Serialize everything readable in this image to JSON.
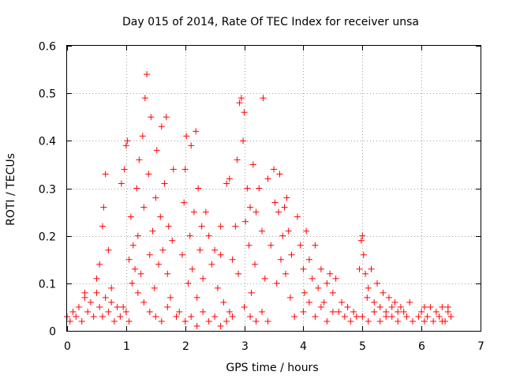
{
  "chart_data": {
    "type": "scatter",
    "title": "Day 015 of 2014, Rate Of TEC Index for receiver unsa",
    "xlabel": "GPS time / hours",
    "ylabel": "ROTI / TECUs",
    "xlim": [
      0,
      7
    ],
    "ylim": [
      0,
      0.6
    ],
    "grid": true,
    "x_ticks": [
      0,
      1,
      2,
      3,
      4,
      5,
      6,
      7
    ],
    "x_tick_labels": [
      "0",
      "1",
      "2",
      "3",
      "4",
      "5",
      "6",
      "7"
    ],
    "y_ticks": [
      0,
      0.1,
      0.2,
      0.3,
      0.4,
      0.5,
      0.6
    ],
    "y_tick_labels": [
      "0",
      "0.1",
      "0.2",
      "0.3",
      "0.4",
      "0.5",
      "0.6"
    ],
    "series": [
      {
        "name": "ROTI",
        "color": "#ff0000",
        "marker": "plus",
        "points": [
          [
            0.0,
            0.03
          ],
          [
            0.05,
            0.02
          ],
          [
            0.1,
            0.04
          ],
          [
            0.15,
            0.03
          ],
          [
            0.2,
            0.05
          ],
          [
            0.25,
            0.02
          ],
          [
            0.3,
            0.07
          ],
          [
            0.35,
            0.04
          ],
          [
            0.4,
            0.06
          ],
          [
            0.45,
            0.03
          ],
          [
            0.5,
            0.08
          ],
          [
            0.55,
            0.05
          ],
          [
            0.6,
            0.03
          ],
          [
            0.65,
            0.07
          ],
          [
            0.7,
            0.04
          ],
          [
            0.75,
            0.06
          ],
          [
            0.8,
            0.02
          ],
          [
            0.85,
            0.05
          ],
          [
            0.3,
            0.08
          ],
          [
            0.5,
            0.11
          ],
          [
            0.55,
            0.14
          ],
          [
            0.6,
            0.22
          ],
          [
            0.62,
            0.26
          ],
          [
            0.65,
            0.33
          ],
          [
            0.7,
            0.17
          ],
          [
            0.75,
            0.09
          ],
          [
            0.9,
            0.03
          ],
          [
            0.95,
            0.05
          ],
          [
            1.0,
            0.04
          ],
          [
            1.05,
            0.02
          ],
          [
            0.92,
            0.31
          ],
          [
            0.97,
            0.34
          ],
          [
            1.0,
            0.39
          ],
          [
            1.02,
            0.4
          ],
          [
            1.05,
            0.15
          ],
          [
            1.08,
            0.24
          ],
          [
            1.1,
            0.1
          ],
          [
            1.12,
            0.18
          ],
          [
            1.15,
            0.13
          ],
          [
            1.18,
            0.3
          ],
          [
            1.2,
            0.2
          ],
          [
            1.22,
            0.36
          ],
          [
            1.25,
            0.12
          ],
          [
            1.28,
            0.41
          ],
          [
            1.3,
            0.26
          ],
          [
            1.32,
            0.49
          ],
          [
            1.35,
            0.54
          ],
          [
            1.38,
            0.33
          ],
          [
            1.4,
            0.16
          ],
          [
            1.42,
            0.45
          ],
          [
            1.45,
            0.21
          ],
          [
            1.48,
            0.09
          ],
          [
            1.5,
            0.28
          ],
          [
            1.52,
            0.38
          ],
          [
            1.55,
            0.14
          ],
          [
            1.58,
            0.24
          ],
          [
            1.6,
            0.43
          ],
          [
            1.62,
            0.17
          ],
          [
            1.65,
            0.31
          ],
          [
            1.68,
            0.45
          ],
          [
            1.7,
            0.12
          ],
          [
            1.72,
            0.22
          ],
          [
            1.75,
            0.07
          ],
          [
            1.78,
            0.19
          ],
          [
            1.8,
            0.34
          ],
          [
            1.85,
            0.03
          ],
          [
            1.2,
            0.08
          ],
          [
            1.3,
            0.06
          ],
          [
            1.4,
            0.04
          ],
          [
            1.5,
            0.03
          ],
          [
            1.6,
            0.02
          ],
          [
            1.7,
            0.05
          ],
          [
            1.9,
            0.04
          ],
          [
            1.95,
            0.16
          ],
          [
            1.98,
            0.27
          ],
          [
            2.0,
            0.34
          ],
          [
            2.02,
            0.41
          ],
          [
            2.05,
            0.1
          ],
          [
            2.08,
            0.2
          ],
          [
            2.1,
            0.39
          ],
          [
            2.12,
            0.13
          ],
          [
            2.15,
            0.25
          ],
          [
            2.18,
            0.42
          ],
          [
            2.2,
            0.07
          ],
          [
            2.22,
            0.3
          ],
          [
            2.25,
            0.17
          ],
          [
            2.28,
            0.22
          ],
          [
            2.3,
            0.11
          ],
          [
            2.35,
            0.25
          ],
          [
            2.4,
            0.2
          ],
          [
            2.45,
            0.14
          ],
          [
            2.5,
            0.17
          ],
          [
            2.55,
            0.09
          ],
          [
            2.6,
            0.16
          ],
          [
            2.65,
            0.06
          ],
          [
            2.0,
            0.02
          ],
          [
            2.1,
            0.03
          ],
          [
            2.2,
            0.01
          ],
          [
            2.3,
            0.04
          ],
          [
            2.4,
            0.02
          ],
          [
            2.5,
            0.03
          ],
          [
            2.6,
            0.01
          ],
          [
            2.7,
            0.02
          ],
          [
            2.75,
            0.04
          ],
          [
            2.8,
            0.03
          ],
          [
            2.6,
            0.22
          ],
          [
            2.7,
            0.31
          ],
          [
            2.75,
            0.32
          ],
          [
            2.8,
            0.15
          ],
          [
            2.85,
            0.22
          ],
          [
            2.88,
            0.36
          ],
          [
            2.9,
            0.12
          ],
          [
            2.92,
            0.48
          ],
          [
            2.95,
            0.49
          ],
          [
            2.98,
            0.4
          ],
          [
            3.0,
            0.46
          ],
          [
            3.02,
            0.23
          ],
          [
            3.05,
            0.3
          ],
          [
            3.08,
            0.18
          ],
          [
            3.1,
            0.26
          ],
          [
            3.12,
            0.08
          ],
          [
            3.15,
            0.35
          ],
          [
            3.18,
            0.14
          ],
          [
            3.2,
            0.25
          ],
          [
            3.25,
            0.3
          ],
          [
            3.3,
            0.21
          ],
          [
            3.32,
            0.49
          ],
          [
            3.35,
            0.11
          ],
          [
            3.4,
            0.32
          ],
          [
            3.0,
            0.05
          ],
          [
            3.1,
            0.03
          ],
          [
            3.2,
            0.02
          ],
          [
            3.3,
            0.04
          ],
          [
            3.4,
            0.02
          ],
          [
            3.45,
            0.18
          ],
          [
            3.5,
            0.34
          ],
          [
            3.52,
            0.27
          ],
          [
            3.55,
            0.1
          ],
          [
            3.58,
            0.25
          ],
          [
            3.6,
            0.33
          ],
          [
            3.62,
            0.15
          ],
          [
            3.65,
            0.2
          ],
          [
            3.68,
            0.26
          ],
          [
            3.7,
            0.12
          ],
          [
            3.72,
            0.28
          ],
          [
            3.75,
            0.21
          ],
          [
            3.78,
            0.07
          ],
          [
            3.8,
            0.16
          ],
          [
            3.85,
            0.03
          ],
          [
            3.9,
            0.24
          ],
          [
            3.95,
            0.18
          ],
          [
            4.0,
            0.13
          ],
          [
            4.02,
            0.08
          ],
          [
            4.05,
            0.21
          ],
          [
            4.1,
            0.15
          ],
          [
            4.15,
            0.11
          ],
          [
            4.2,
            0.18
          ],
          [
            4.25,
            0.09
          ],
          [
            4.3,
            0.13
          ],
          [
            4.35,
            0.06
          ],
          [
            4.4,
            0.1
          ],
          [
            4.45,
            0.12
          ],
          [
            4.5,
            0.08
          ],
          [
            4.55,
            0.11
          ],
          [
            4.6,
            0.04
          ],
          [
            4.65,
            0.06
          ],
          [
            4.7,
            0.03
          ],
          [
            4.75,
            0.05
          ],
          [
            4.8,
            0.02
          ],
          [
            4.0,
            0.04
          ],
          [
            4.1,
            0.06
          ],
          [
            4.2,
            0.03
          ],
          [
            4.3,
            0.05
          ],
          [
            4.4,
            0.02
          ],
          [
            4.5,
            0.04
          ],
          [
            4.85,
            0.04
          ],
          [
            4.9,
            0.03
          ],
          [
            4.95,
            0.13
          ],
          [
            4.98,
            0.19
          ],
          [
            5.0,
            0.2
          ],
          [
            5.02,
            0.16
          ],
          [
            5.05,
            0.12
          ],
          [
            5.08,
            0.07
          ],
          [
            5.1,
            0.09
          ],
          [
            5.15,
            0.13
          ],
          [
            5.2,
            0.06
          ],
          [
            5.25,
            0.1
          ],
          [
            5.3,
            0.05
          ],
          [
            5.35,
            0.08
          ],
          [
            5.4,
            0.04
          ],
          [
            5.45,
            0.07
          ],
          [
            5.5,
            0.03
          ],
          [
            5.55,
            0.06
          ],
          [
            5.6,
            0.02
          ],
          [
            5.65,
            0.05
          ],
          [
            5.7,
            0.04
          ],
          [
            5.75,
            0.03
          ],
          [
            5.8,
            0.06
          ],
          [
            5.85,
            0.02
          ],
          [
            5.0,
            0.03
          ],
          [
            5.1,
            0.02
          ],
          [
            5.2,
            0.04
          ],
          [
            5.3,
            0.02
          ],
          [
            5.4,
            0.03
          ],
          [
            5.5,
            0.05
          ],
          [
            5.6,
            0.04
          ],
          [
            5.95,
            0.03
          ],
          [
            6.0,
            0.04
          ],
          [
            6.05,
            0.02
          ],
          [
            6.1,
            0.03
          ],
          [
            6.15,
            0.05
          ],
          [
            6.2,
            0.02
          ],
          [
            6.25,
            0.04
          ],
          [
            6.3,
            0.03
          ],
          [
            6.35,
            0.05
          ],
          [
            6.4,
            0.02
          ],
          [
            6.45,
            0.04
          ],
          [
            6.5,
            0.03
          ],
          [
            6.05,
            0.05
          ],
          [
            6.35,
            0.02
          ],
          [
            6.45,
            0.05
          ]
        ]
      }
    ]
  }
}
